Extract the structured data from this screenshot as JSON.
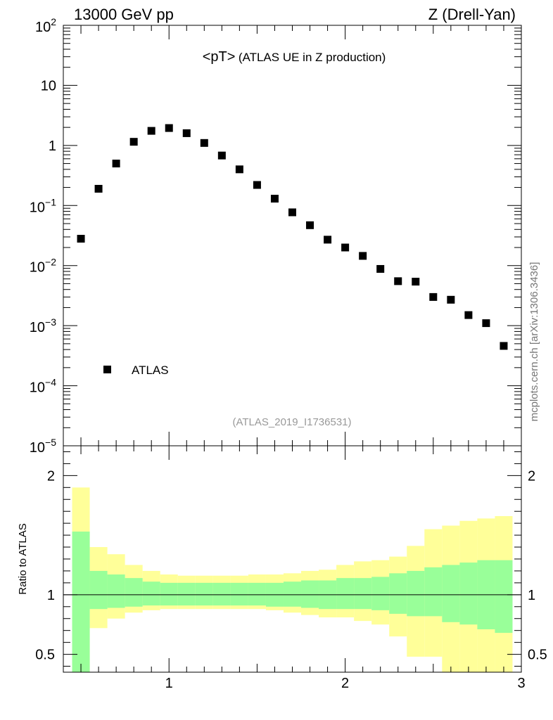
{
  "header": {
    "left": "13000 GeV pp",
    "right": "Z (Drell-Yan)"
  },
  "side_label": "mcplots.cern.ch [arXiv:1306.3436]",
  "chart_data": {
    "type": "scatter",
    "title_main": "<pT>",
    "title_sub": "(ATLAS UE in Z production)",
    "analysis_id": "(ATLAS_2019_I1736531)",
    "legend": [
      {
        "label": "ATLAS",
        "marker": "square",
        "position": "lower-left"
      }
    ],
    "upper_panel": {
      "yscale": "log",
      "ylim": [
        1e-05,
        100
      ],
      "ytick_labels": [
        {
          "base": "10",
          "exp": "2",
          "value": 100
        },
        {
          "base": "10",
          "exp": "",
          "value": 10
        },
        {
          "base": "1",
          "exp": "",
          "value": 1
        },
        {
          "base": "10",
          "exp": "−1",
          "value": 0.1
        },
        {
          "base": "10",
          "exp": "−2",
          "value": 0.01
        },
        {
          "base": "10",
          "exp": "−3",
          "value": 0.001
        },
        {
          "base": "10",
          "exp": "−4",
          "value": 0.0001
        },
        {
          "base": "10",
          "exp": "−5",
          "value": 1e-05
        }
      ],
      "series": [
        {
          "name": "ATLAS",
          "x": [
            0.5,
            0.6,
            0.7,
            0.8,
            0.9,
            1.0,
            1.1,
            1.2,
            1.3,
            1.4,
            1.5,
            1.6,
            1.7,
            1.8,
            1.9,
            2.0,
            2.1,
            2.2,
            2.3,
            2.4,
            2.5,
            2.6,
            2.7,
            2.8,
            2.9
          ],
          "y": [
            0.028,
            0.19,
            0.5,
            1.15,
            1.75,
            1.95,
            1.6,
            1.1,
            0.68,
            0.4,
            0.22,
            0.13,
            0.077,
            0.047,
            0.027,
            0.02,
            0.0145,
            0.0088,
            0.0055,
            0.0054,
            0.003,
            0.0027,
            0.0015,
            0.0011,
            0.00046
          ]
        }
      ]
    },
    "lower_panel": {
      "ylabel": "Ratio to ATLAS",
      "ylim": [
        0.35,
        2.25
      ],
      "ytick_labels": [
        {
          "text": "2",
          "value": 2
        },
        {
          "text": "1",
          "value": 1
        },
        {
          "text": "0.5",
          "value": 0.5
        }
      ],
      "reference_line": 1.0,
      "bin_edges": [
        0.45,
        0.55,
        0.65,
        0.75,
        0.85,
        0.95,
        1.05,
        1.15,
        1.25,
        1.35,
        1.45,
        1.55,
        1.65,
        1.75,
        1.85,
        1.95,
        2.05,
        2.15,
        2.25,
        2.35,
        2.45,
        2.55,
        2.65,
        2.75,
        2.85,
        2.95
      ],
      "stat_band": {
        "color": "#99ff99",
        "up": [
          1.53,
          1.2,
          1.17,
          1.14,
          1.11,
          1.1,
          1.1,
          1.1,
          1.1,
          1.1,
          1.1,
          1.1,
          1.11,
          1.12,
          1.12,
          1.14,
          1.14,
          1.15,
          1.18,
          1.2,
          1.23,
          1.25,
          1.27,
          1.29,
          1.29
        ],
        "down": [
          0.0,
          0.88,
          0.89,
          0.9,
          0.91,
          0.91,
          0.91,
          0.91,
          0.91,
          0.91,
          0.91,
          0.9,
          0.9,
          0.89,
          0.88,
          0.88,
          0.88,
          0.87,
          0.84,
          0.82,
          0.82,
          0.77,
          0.75,
          0.71,
          0.68
        ]
      },
      "syst_band": {
        "color": "#ffff99",
        "up": [
          1.9,
          1.4,
          1.34,
          1.25,
          1.2,
          1.17,
          1.16,
          1.16,
          1.16,
          1.16,
          1.17,
          1.17,
          1.18,
          1.2,
          1.21,
          1.25,
          1.28,
          1.29,
          1.32,
          1.41,
          1.55,
          1.58,
          1.62,
          1.64,
          1.66
        ],
        "down": [
          0.0,
          0.72,
          0.8,
          0.85,
          0.87,
          0.88,
          0.88,
          0.88,
          0.88,
          0.88,
          0.88,
          0.87,
          0.85,
          0.83,
          0.81,
          0.81,
          0.78,
          0.75,
          0.65,
          0.48,
          0.48,
          0.0,
          0.0,
          0.0,
          0.0
        ]
      }
    },
    "xaxis": {
      "xlim": [
        0.4,
        3.0
      ],
      "tick_labels": [
        {
          "text": "1",
          "value": 1
        },
        {
          "text": "2",
          "value": 2
        },
        {
          "text": "3",
          "value": 3
        }
      ]
    }
  }
}
